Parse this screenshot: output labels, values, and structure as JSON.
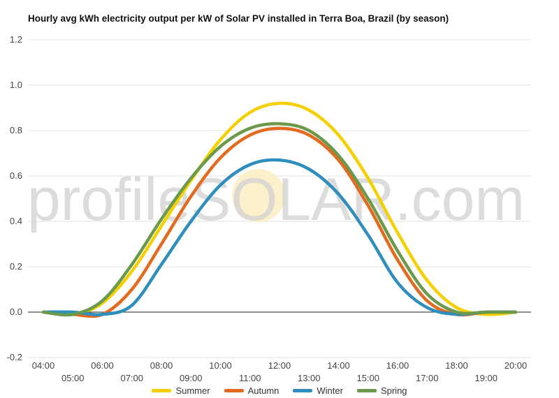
{
  "chart_data": {
    "type": "line",
    "title": "Hourly avg kWh electricity output per kW of Solar PV installed in Terra Boa, Brazil (by season)",
    "watermark": "profileSOLAR.com",
    "xlabel": "",
    "ylabel": "",
    "ylim": [
      -0.2,
      1.2
    ],
    "yticks": [
      "1.2",
      "1.0",
      "0.8",
      "0.6",
      "0.4",
      "0.2",
      "0.0",
      "-0.2"
    ],
    "xticks_upper": [
      "04:00",
      "06:00",
      "08:00",
      "10:00",
      "12:00",
      "14:00",
      "16:00",
      "18:00",
      "20:00"
    ],
    "xticks_lower": [
      "05:00",
      "07:00",
      "09:00",
      "11:00",
      "13:00",
      "15:00",
      "17:00",
      "19:00"
    ],
    "x": [
      "04:00",
      "05:00",
      "06:00",
      "07:00",
      "08:00",
      "09:00",
      "10:00",
      "11:00",
      "12:00",
      "13:00",
      "14:00",
      "15:00",
      "16:00",
      "17:00",
      "18:00",
      "19:00",
      "20:00"
    ],
    "grid": true,
    "legend_position": "bottom",
    "series": [
      {
        "name": "Summer",
        "color": "#f5d000",
        "values": [
          0.0,
          -0.01,
          0.04,
          0.18,
          0.38,
          0.58,
          0.76,
          0.88,
          0.92,
          0.89,
          0.78,
          0.59,
          0.35,
          0.14,
          0.02,
          -0.01,
          0.0
        ]
      },
      {
        "name": "Autumn",
        "color": "#e36a1e",
        "values": [
          0.0,
          -0.01,
          -0.01,
          0.1,
          0.3,
          0.51,
          0.68,
          0.78,
          0.81,
          0.78,
          0.67,
          0.47,
          0.23,
          0.05,
          -0.01,
          0.0,
          0.0
        ]
      },
      {
        "name": "Winter",
        "color": "#2e8fbf",
        "values": [
          0.0,
          0.0,
          -0.01,
          0.03,
          0.21,
          0.4,
          0.56,
          0.65,
          0.67,
          0.63,
          0.52,
          0.34,
          0.13,
          0.02,
          -0.01,
          0.0,
          0.0
        ]
      },
      {
        "name": "Spring",
        "color": "#6c9a4c",
        "values": [
          0.0,
          -0.01,
          0.05,
          0.21,
          0.41,
          0.59,
          0.73,
          0.81,
          0.83,
          0.8,
          0.69,
          0.5,
          0.27,
          0.08,
          0.0,
          0.0,
          0.0
        ]
      }
    ]
  }
}
